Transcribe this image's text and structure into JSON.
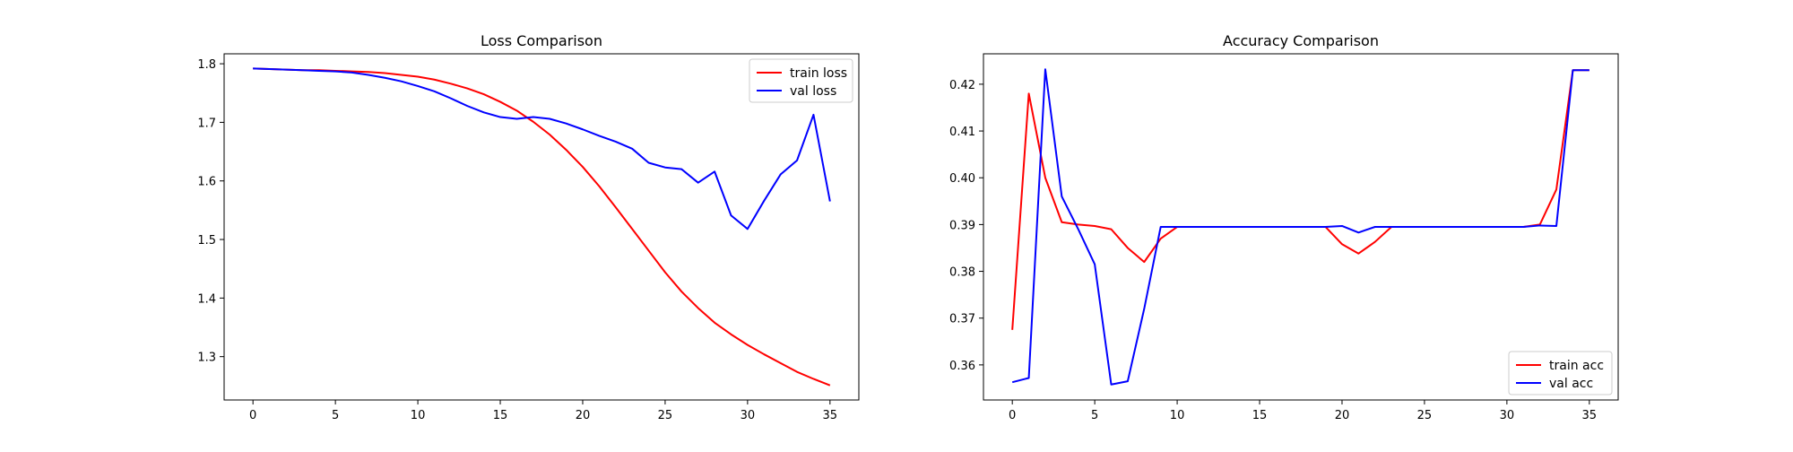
{
  "chart_data": [
    {
      "type": "line",
      "title": "Loss Comparison",
      "xlabel": "",
      "ylabel": "",
      "xlim": [
        -1.75,
        36.75
      ],
      "ylim": [
        1.226,
        1.817
      ],
      "xticks": [
        0,
        5,
        10,
        15,
        20,
        25,
        30,
        35
      ],
      "yticks": [
        1.3,
        1.4,
        1.5,
        1.6,
        1.7,
        1.8
      ],
      "ytick_format": 1,
      "grid": false,
      "legend_position": "top-right",
      "x": [
        0,
        1,
        2,
        3,
        4,
        5,
        6,
        7,
        8,
        9,
        10,
        11,
        12,
        13,
        14,
        15,
        16,
        17,
        18,
        19,
        20,
        21,
        22,
        23,
        24,
        25,
        26,
        27,
        28,
        29,
        30,
        31,
        32,
        33,
        34,
        35
      ],
      "series": [
        {
          "name": "train loss",
          "color": "#ff0000",
          "values": [
            1.792,
            1.791,
            1.79,
            1.789,
            1.789,
            1.788,
            1.787,
            1.786,
            1.784,
            1.781,
            1.778,
            1.773,
            1.766,
            1.758,
            1.748,
            1.735,
            1.72,
            1.701,
            1.679,
            1.653,
            1.624,
            1.591,
            1.555,
            1.518,
            1.481,
            1.444,
            1.411,
            1.383,
            1.358,
            1.338,
            1.32,
            1.304,
            1.289,
            1.274,
            1.262,
            1.251
          ]
        },
        {
          "name": "val loss",
          "color": "#0000ff",
          "values": [
            1.792,
            1.791,
            1.79,
            1.789,
            1.788,
            1.787,
            1.785,
            1.781,
            1.776,
            1.77,
            1.762,
            1.753,
            1.741,
            1.728,
            1.717,
            1.709,
            1.706,
            1.709,
            1.706,
            1.698,
            1.688,
            1.677,
            1.667,
            1.655,
            1.631,
            1.623,
            1.62,
            1.597,
            1.616,
            1.541,
            1.518,
            1.566,
            1.611,
            1.635,
            1.713,
            1.565
          ]
        }
      ]
    },
    {
      "type": "line",
      "title": "Accuracy Comparison",
      "xlabel": "",
      "ylabel": "",
      "xlim": [
        -1.75,
        36.75
      ],
      "ylim": [
        0.3525,
        0.4265
      ],
      "xticks": [
        0,
        5,
        10,
        15,
        20,
        25,
        30,
        35
      ],
      "yticks": [
        0.36,
        0.37,
        0.38,
        0.39,
        0.4,
        0.41,
        0.42
      ],
      "ytick_format": 2,
      "grid": false,
      "legend_position": "bottom-right",
      "x": [
        0,
        1,
        2,
        3,
        4,
        5,
        6,
        7,
        8,
        9,
        10,
        11,
        12,
        13,
        14,
        15,
        16,
        17,
        18,
        19,
        20,
        21,
        22,
        23,
        24,
        25,
        26,
        27,
        28,
        29,
        30,
        31,
        32,
        33,
        34,
        35
      ],
      "series": [
        {
          "name": "train acc",
          "color": "#ff0000",
          "values": [
            0.3675,
            0.418,
            0.4,
            0.3905,
            0.39,
            0.3897,
            0.389,
            0.385,
            0.382,
            0.387,
            0.3895,
            0.3895,
            0.3895,
            0.3895,
            0.3895,
            0.3895,
            0.3895,
            0.3895,
            0.3895,
            0.3895,
            0.3858,
            0.3838,
            0.3863,
            0.3895,
            0.3895,
            0.3895,
            0.3895,
            0.3895,
            0.3895,
            0.3895,
            0.3895,
            0.3895,
            0.39,
            0.3975,
            0.423,
            0.423
          ]
        },
        {
          "name": "val acc",
          "color": "#0000ff",
          "values": [
            0.3563,
            0.3572,
            0.4232,
            0.396,
            0.389,
            0.3815,
            0.3558,
            0.3565,
            0.372,
            0.3895,
            0.3895,
            0.3895,
            0.3895,
            0.3895,
            0.3895,
            0.3895,
            0.3895,
            0.3895,
            0.3895,
            0.3895,
            0.3897,
            0.3883,
            0.3895,
            0.3895,
            0.3895,
            0.3895,
            0.3895,
            0.3895,
            0.3895,
            0.3895,
            0.3895,
            0.3895,
            0.3898,
            0.3897,
            0.423,
            0.423
          ]
        }
      ]
    }
  ]
}
